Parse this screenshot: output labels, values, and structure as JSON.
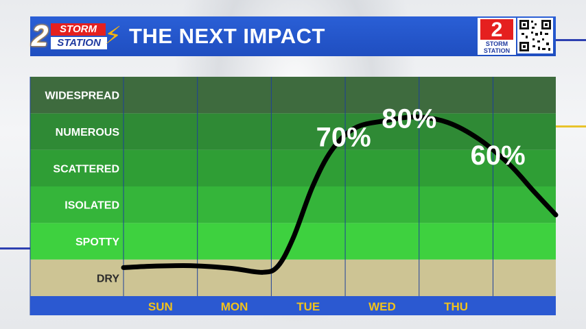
{
  "header": {
    "title": "THE NEXT IMPACT",
    "logo_number": "2",
    "logo_word_top": "STORM",
    "logo_word_bottom": "STATION",
    "corner_number": "2",
    "corner_word_top": "STORM",
    "corner_word_bottom": "STATION"
  },
  "colors": {
    "header_blue": "#2159d0",
    "band_widespread": "#3e6b3e",
    "band_numerous": "#2f8a35",
    "band_scattered": "#2f9e35",
    "band_isolated": "#35b53a",
    "band_spotty": "#3ed13f",
    "band_dry": "#cdc494",
    "axis_bar": "#2b59d1",
    "day_label": "#f2c21b",
    "curve": "#000000"
  },
  "chart_data": {
    "type": "line",
    "categories_y": [
      "DRY",
      "SPOTTY",
      "ISOLATED",
      "SCATTERED",
      "NUMEROUS",
      "WIDESPREAD"
    ],
    "x_labels": [
      "",
      "SUN",
      "MON",
      "TUE",
      "WED",
      "THU"
    ],
    "x_range": [
      0,
      5.6
    ],
    "y_range": [
      0,
      6
    ],
    "series": [
      {
        "values": [
          {
            "x": 0.0,
            "y": 0.78
          },
          {
            "x": 0.4,
            "y": 0.82
          },
          {
            "x": 0.9,
            "y": 0.83
          },
          {
            "x": 1.4,
            "y": 0.76
          },
          {
            "x": 1.8,
            "y": 0.65
          },
          {
            "x": 2.0,
            "y": 0.82
          },
          {
            "x": 2.2,
            "y": 1.6
          },
          {
            "x": 2.45,
            "y": 3.0
          },
          {
            "x": 2.7,
            "y": 4.0
          },
          {
            "x": 3.0,
            "y": 4.6
          },
          {
            "x": 3.4,
            "y": 4.8
          },
          {
            "x": 3.8,
            "y": 4.9
          },
          {
            "x": 4.2,
            "y": 4.75
          },
          {
            "x": 4.6,
            "y": 4.3
          },
          {
            "x": 5.0,
            "y": 3.6
          },
          {
            "x": 5.3,
            "y": 2.9
          },
          {
            "x": 5.6,
            "y": 2.22
          }
        ]
      }
    ],
    "annotations": [
      {
        "text": "70%",
        "x": 2.85,
        "y": 4.1
      },
      {
        "text": "80%",
        "x": 3.7,
        "y": 4.6
      },
      {
        "text": "60%",
        "x": 4.85,
        "y": 3.6
      }
    ],
    "grid": true
  }
}
